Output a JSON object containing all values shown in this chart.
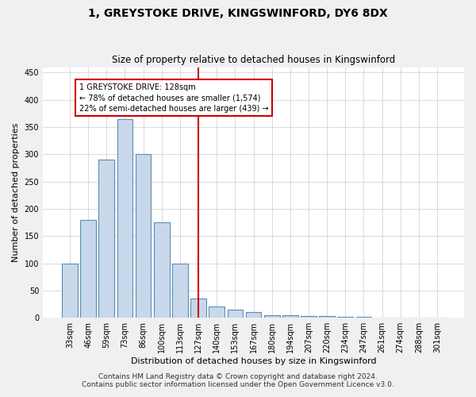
{
  "title": "1, GREYSTOKE DRIVE, KINGSWINFORD, DY6 8DX",
  "subtitle": "Size of property relative to detached houses in Kingswinford",
  "xlabel": "Distribution of detached houses by size in Kingswinford",
  "ylabel": "Number of detached properties",
  "categories": [
    "33sqm",
    "46sqm",
    "59sqm",
    "73sqm",
    "86sqm",
    "100sqm",
    "113sqm",
    "127sqm",
    "140sqm",
    "153sqm",
    "167sqm",
    "180sqm",
    "194sqm",
    "207sqm",
    "220sqm",
    "234sqm",
    "247sqm",
    "261sqm",
    "274sqm",
    "288sqm",
    "301sqm"
  ],
  "values": [
    100,
    180,
    290,
    365,
    300,
    175,
    100,
    35,
    20,
    15,
    10,
    5,
    5,
    3,
    3,
    2,
    2,
    1,
    0,
    0,
    0
  ],
  "bar_color": "#c8d8ea",
  "bar_edge_color": "#5b8db8",
  "highlight_index": 7,
  "highlight_color": "#cc0000",
  "ylim": [
    0,
    460
  ],
  "yticks": [
    0,
    50,
    100,
    150,
    200,
    250,
    300,
    350,
    400,
    450
  ],
  "annotation_text": "1 GREYSTOKE DRIVE: 128sqm\n← 78% of detached houses are smaller (1,574)\n22% of semi-detached houses are larger (439) →",
  "footer_line1": "Contains HM Land Registry data © Crown copyright and database right 2024.",
  "footer_line2": "Contains public sector information licensed under the Open Government Licence v3.0.",
  "background_color": "#f0f0f0",
  "plot_background_color": "#ffffff",
  "grid_color": "#cccccc",
  "title_fontsize": 10,
  "subtitle_fontsize": 8.5,
  "axis_label_fontsize": 8,
  "tick_fontsize": 7,
  "footer_fontsize": 6.5
}
